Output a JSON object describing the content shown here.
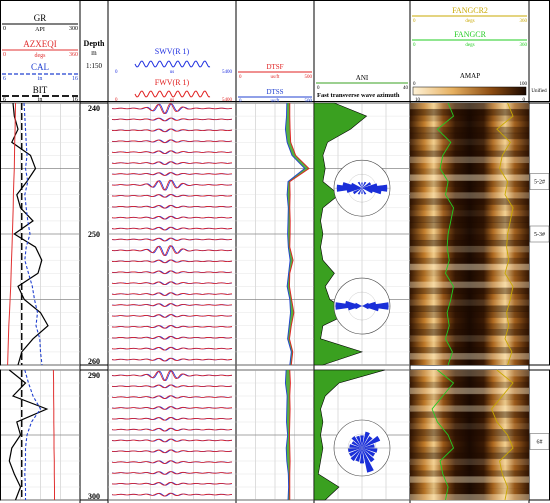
{
  "chart_data": {
    "type": "well-log",
    "depth_track": {
      "title": "Depth",
      "unit": "m",
      "scale": "1:150"
    },
    "curves": {
      "GR": {
        "name": "GR",
        "unit": "API",
        "range": [
          0,
          300
        ],
        "color": "#000000"
      },
      "AZXEQI": {
        "name": "AZXEQI",
        "unit": "degs",
        "range": [
          0,
          360
        ],
        "color": "#e03030"
      },
      "CAL": {
        "name": "CAL",
        "unit": "in",
        "range": [
          6,
          16
        ],
        "color": "#2040d0"
      },
      "BIT": {
        "name": "BIT",
        "unit": "in",
        "range": [
          6,
          16
        ],
        "color": "#000000"
      },
      "SWV": {
        "name": "SWV(R 1)",
        "unit": "us",
        "range": [
          0,
          5400
        ],
        "color": "#2030e0"
      },
      "FWV": {
        "name": "FWV(R 1)",
        "unit": "us",
        "range": [
          0,
          5400
        ],
        "color": "#e02020"
      },
      "DTSF": {
        "name": "DTSF",
        "unit": "us/ft",
        "range": [
          0,
          500
        ],
        "color": "#e02020"
      },
      "DTSS": {
        "name": "DTSS",
        "unit": "us/ft",
        "range": [
          0,
          500
        ],
        "color": "#2040d0"
      },
      "ANI": {
        "name": "ANI",
        "range": [
          0,
          40
        ],
        "color": "#3aa020"
      },
      "FANGCR2": {
        "name": "FANGCR2",
        "unit": "degs",
        "range": [
          0,
          360
        ],
        "color": "#c8a800"
      },
      "FANGCR": {
        "name": "FANGCR",
        "unit": "degs",
        "range": [
          0,
          360
        ],
        "color": "#22cc22"
      }
    },
    "amap": {
      "name": "AMAP",
      "range": [
        0,
        100
      ],
      "legend_min": "10",
      "legend_max": "0",
      "legend_label": "Unified"
    },
    "azimuth_label": "Fast transverse wave azimuth",
    "segments": [
      {
        "depth_range": [
          240,
          260
        ],
        "ticks": [
          240,
          250,
          260
        ]
      },
      {
        "depth_range": [
          290,
          300
        ],
        "ticks": [
          290,
          300
        ]
      }
    ],
    "zones": [
      "5-2#",
      "5-3#",
      "6#"
    ],
    "GR": {
      "seg1": {
        "depth": [
          240,
          241,
          242,
          243,
          244,
          245,
          246,
          247,
          248,
          249,
          250,
          251,
          252,
          253,
          254,
          255,
          256,
          257,
          258,
          259,
          260
        ],
        "values": [
          40,
          45,
          60,
          35,
          110,
          130,
          95,
          55,
          70,
          120,
          45,
          130,
          155,
          140,
          60,
          85,
          150,
          180,
          120,
          75,
          60
        ]
      },
      "seg2": {
        "depth": [
          290,
          291,
          292,
          293,
          294,
          295,
          296,
          297,
          298,
          299,
          300
        ],
        "values": [
          25,
          90,
          40,
          175,
          55,
          70,
          35,
          25,
          45,
          70,
          50
        ]
      }
    },
    "CAL": {
      "seg1": {
        "depth": [
          240,
          241,
          242,
          243,
          244,
          245,
          246,
          247,
          248,
          249,
          250,
          251,
          252,
          253,
          254,
          255,
          256,
          257,
          258,
          259,
          260
        ],
        "values": [
          8.8,
          8.9,
          9.0,
          9.1,
          9.2,
          9.0,
          9.3,
          8.9,
          9.1,
          9.3,
          9.6,
          9.1,
          8.9,
          9.4,
          9.9,
          10.2,
          10.6,
          10.4,
          10.9,
          11.0,
          11.2
        ]
      },
      "seg2": {
        "depth": [
          290,
          291,
          292,
          293,
          294,
          295,
          296,
          297,
          298,
          299,
          300
        ],
        "values": [
          8.9,
          9.4,
          10.0,
          11.0,
          9.8,
          9.2,
          9.0,
          9.0,
          8.9,
          9.0,
          9.0
        ]
      }
    },
    "AZXEQI": {
      "seg1": {
        "depth": [
          240,
          241,
          242,
          243,
          244,
          245,
          246,
          247,
          248,
          249,
          250,
          251,
          252,
          253,
          254,
          255,
          256,
          257,
          258,
          259,
          260
        ],
        "values": [
          60,
          59,
          58,
          56,
          55,
          54,
          52,
          50,
          49,
          47,
          45,
          43,
          41,
          39,
          37,
          34,
          31,
          28,
          26,
          24,
          22
        ]
      },
      "seg2": {
        "depth": [
          290,
          291,
          292,
          293,
          294,
          295,
          296,
          297,
          298,
          299,
          300
        ],
        "values": [
          242,
          243,
          243,
          244,
          244,
          245,
          245,
          246,
          246,
          247,
          247
        ]
      }
    },
    "BIT": {
      "value": 8.5
    },
    "DTSF": {
      "seg1": {
        "depth": [
          240,
          241,
          242,
          243,
          244,
          245,
          246,
          247,
          248,
          249,
          250,
          251,
          252,
          253,
          254,
          255,
          256,
          257,
          258,
          259,
          260
        ],
        "values": [
          150,
          150,
          152,
          156,
          190,
          280,
          150,
          152,
          150,
          153,
          152,
          150,
          172,
          150,
          148,
          162,
          178,
          160,
          148,
          170,
          160
        ]
      },
      "seg2": {
        "depth": [
          290,
          291,
          292,
          293,
          294,
          295,
          296,
          297,
          298,
          299,
          300
        ],
        "values": [
          150,
          154,
          150,
          152,
          150,
          148,
          150,
          152,
          150,
          150,
          150
        ]
      }
    },
    "DTSS": {
      "seg1": {
        "depth": [
          240,
          241,
          242,
          243,
          244,
          245,
          246,
          247,
          248,
          249,
          250,
          251,
          252,
          253,
          254,
          255,
          256,
          257,
          258,
          259,
          260
        ],
        "values": [
          130,
          128,
          120,
          132,
          165,
          250,
          138,
          132,
          140,
          138,
          135,
          140,
          152,
          142,
          132,
          150,
          155,
          145,
          135,
          160,
          150
        ]
      },
      "seg2": {
        "depth": [
          290,
          291,
          292,
          293,
          294,
          295,
          296,
          297,
          298,
          299,
          300
        ],
        "values": [
          125,
          120,
          132,
          130,
          128,
          135,
          126,
          130,
          140,
          142,
          138
        ]
      }
    },
    "ANI": {
      "seg1": {
        "depth": [
          240,
          241,
          242,
          243,
          244,
          245,
          246,
          247,
          248,
          249,
          250,
          251,
          252,
          253,
          254,
          255,
          256,
          257,
          258,
          259,
          260
        ],
        "values": [
          8,
          22,
          15,
          5,
          3,
          4,
          3,
          10,
          3,
          2,
          3,
          2,
          3,
          8,
          4,
          6,
          15,
          3,
          2,
          20,
          3
        ]
      },
      "seg2": {
        "depth": [
          290,
          291,
          292,
          293,
          294,
          295,
          296,
          297,
          298,
          299,
          300
        ],
        "values": [
          30,
          10,
          4,
          2,
          3,
          2,
          3,
          2,
          1,
          10,
          4
        ]
      }
    },
    "rose_diagrams": [
      {
        "depth": 246.5,
        "petals": [
          [
            80,
            0.55
          ],
          [
            90,
            0.9
          ],
          [
            100,
            0.7
          ],
          [
            260,
            0.55
          ],
          [
            270,
            0.9
          ],
          [
            280,
            0.7
          ],
          [
            60,
            0.35
          ],
          [
            240,
            0.35
          ],
          [
            110,
            0.4
          ],
          [
            290,
            0.4
          ],
          [
            30,
            0.25
          ],
          [
            150,
            0.25
          ],
          [
            210,
            0.25
          ],
          [
            330,
            0.25
          ],
          [
            0,
            0.2
          ],
          [
            180,
            0.2
          ]
        ]
      },
      {
        "depth": 255.5,
        "petals": [
          [
            80,
            0.5
          ],
          [
            90,
            0.95
          ],
          [
            100,
            0.6
          ],
          [
            260,
            0.5
          ],
          [
            270,
            0.95
          ],
          [
            280,
            0.6
          ],
          [
            70,
            0.25
          ],
          [
            250,
            0.25
          ],
          [
            110,
            0.25
          ],
          [
            290,
            0.25
          ]
        ]
      },
      {
        "depth": 296.0,
        "petals": [
          [
            0,
            0.45
          ],
          [
            20,
            0.6
          ],
          [
            40,
            0.5
          ],
          [
            60,
            0.7
          ],
          [
            80,
            0.45
          ],
          [
            100,
            0.55
          ],
          [
            120,
            0.5
          ],
          [
            140,
            0.6
          ],
          [
            160,
            0.9
          ],
          [
            180,
            0.55
          ],
          [
            200,
            0.5
          ],
          [
            220,
            0.55
          ],
          [
            240,
            0.5
          ],
          [
            260,
            0.5
          ],
          [
            280,
            0.45
          ],
          [
            300,
            0.4
          ],
          [
            320,
            0.5
          ],
          [
            340,
            0.45
          ]
        ]
      }
    ],
    "FANGCR_trace": {
      "seg1": {
        "depth": [
          240,
          241,
          242,
          243,
          244,
          245,
          246,
          247,
          248,
          249,
          250,
          251,
          252,
          253,
          254,
          255,
          256,
          257,
          258,
          259,
          260
        ],
        "values": [
          60,
          70,
          40,
          65,
          50,
          45,
          60,
          55,
          70,
          65,
          60,
          58,
          62,
          55,
          70,
          65,
          58,
          62,
          55,
          68,
          60
        ]
      },
      "seg2": {
        "depth": [
          290,
          291,
          292,
          293,
          294,
          295,
          296,
          297,
          298,
          299,
          300
        ],
        "values": [
          40,
          70,
          50,
          30,
          40,
          60,
          70,
          45,
          50,
          60,
          55
        ]
      }
    }
  }
}
